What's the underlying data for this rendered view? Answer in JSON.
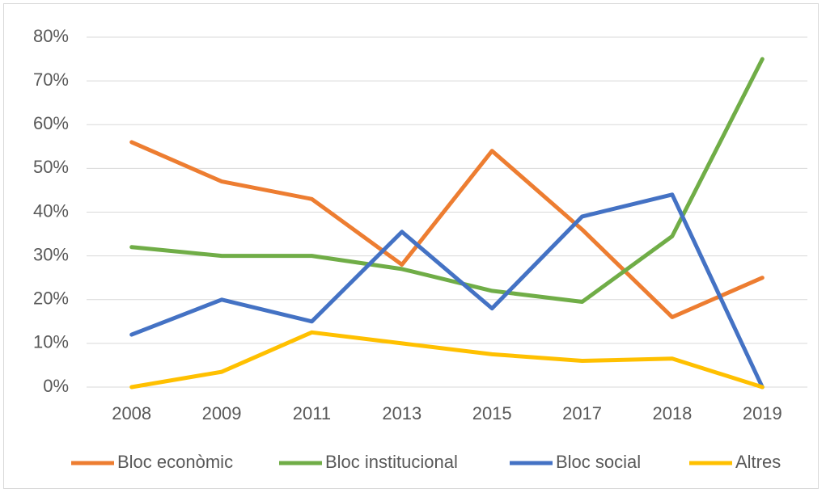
{
  "chart_data": {
    "type": "line",
    "categories": [
      "2008",
      "2009",
      "2011",
      "2013",
      "2015",
      "2017",
      "2018",
      "2019"
    ],
    "series": [
      {
        "name": "Bloc econòmic",
        "color": "#ed7d31",
        "values": [
          56,
          47,
          43,
          28,
          54,
          36,
          16,
          25
        ]
      },
      {
        "name": "Bloc institucional",
        "color": "#70ad47",
        "values": [
          32,
          30,
          30,
          27,
          22,
          19.5,
          34.5,
          75
        ]
      },
      {
        "name": "Bloc social",
        "color": "#4472c4",
        "values": [
          12,
          20,
          15,
          35.5,
          18,
          39,
          44,
          0
        ]
      },
      {
        "name": "Altres",
        "color": "#ffc000",
        "values": [
          0,
          3.5,
          12.5,
          10,
          7.5,
          6,
          6.5,
          0
        ]
      }
    ],
    "ylim": [
      0,
      80
    ],
    "yticks": [
      {
        "value": 0,
        "label": "0%"
      },
      {
        "value": 10,
        "label": "10%"
      },
      {
        "value": 20,
        "label": "20%"
      },
      {
        "value": 30,
        "label": "30%"
      },
      {
        "value": 40,
        "label": "40%"
      },
      {
        "value": 50,
        "label": "50%"
      },
      {
        "value": 60,
        "label": "60%"
      },
      {
        "value": 70,
        "label": "70%"
      },
      {
        "value": 80,
        "label": "80%"
      }
    ],
    "grid": true,
    "legend": "bottom"
  }
}
